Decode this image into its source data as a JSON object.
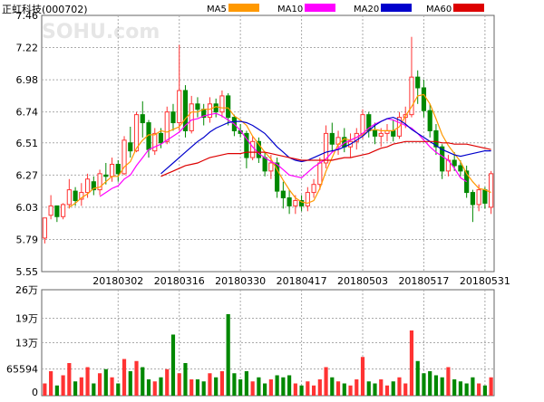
{
  "header": {
    "title": "正虹科技(000702)",
    "watermark": "SOHU.com",
    "legend": [
      {
        "label": "MA5",
        "color": "#ff9900"
      },
      {
        "label": "MA10",
        "color": "#ff00ff"
      },
      {
        "label": "MA20",
        "color": "#0000cc"
      },
      {
        "label": "MA60",
        "color": "#dd0000"
      }
    ]
  },
  "colors": {
    "up": "#ff3333",
    "down": "#008800",
    "grid": "#aaaaaa",
    "axis": "#000000"
  },
  "chart_data": [
    {
      "type": "candlestick",
      "name": "price",
      "ylim": [
        5.55,
        7.46
      ],
      "y_ticks": [
        "7.46",
        "7.22",
        "6.98",
        "6.74",
        "6.51",
        "6.27",
        "6.03",
        "5.79",
        "5.55"
      ],
      "x_tick_labels": [
        {
          "label": "20180302",
          "index": 12
        },
        {
          "label": "20180316",
          "index": 22
        },
        {
          "label": "20180330",
          "index": 32
        },
        {
          "label": "20180417",
          "index": 42
        },
        {
          "label": "20180503",
          "index": 52
        },
        {
          "label": "20180517",
          "index": 62
        },
        {
          "label": "20180531",
          "index": 72
        }
      ],
      "ohlc": [
        [
          5.8,
          5.95,
          5.76,
          5.95
        ],
        [
          5.97,
          6.12,
          5.94,
          6.04
        ],
        [
          6.04,
          6.04,
          5.92,
          5.96
        ],
        [
          5.96,
          6.06,
          5.94,
          6.05
        ],
        [
          6.05,
          6.24,
          6.02,
          6.16
        ],
        [
          6.15,
          6.18,
          6.04,
          6.08
        ],
        [
          6.09,
          6.21,
          6.04,
          6.14
        ],
        [
          6.14,
          6.28,
          6.1,
          6.24
        ],
        [
          6.22,
          6.26,
          6.12,
          6.16
        ],
        [
          6.16,
          6.31,
          6.12,
          6.28
        ],
        [
          6.27,
          6.36,
          6.2,
          6.26
        ],
        [
          6.26,
          6.4,
          6.22,
          6.35
        ],
        [
          6.35,
          6.38,
          6.22,
          6.28
        ],
        [
          6.28,
          6.56,
          6.27,
          6.53
        ],
        [
          6.51,
          6.63,
          6.4,
          6.45
        ],
        [
          6.45,
          6.74,
          6.44,
          6.72
        ],
        [
          6.72,
          6.82,
          6.55,
          6.66
        ],
        [
          6.66,
          6.68,
          6.4,
          6.46
        ],
        [
          6.45,
          6.62,
          6.42,
          6.58
        ],
        [
          6.58,
          6.62,
          6.47,
          6.51
        ],
        [
          6.52,
          6.78,
          6.5,
          6.74
        ],
        [
          6.74,
          6.8,
          6.6,
          6.66
        ],
        [
          6.66,
          7.24,
          6.6,
          6.9
        ],
        [
          6.9,
          6.94,
          6.55,
          6.6
        ],
        [
          6.6,
          6.86,
          6.58,
          6.8
        ],
        [
          6.8,
          6.85,
          6.7,
          6.76
        ],
        [
          6.76,
          6.8,
          6.64,
          6.7
        ],
        [
          6.7,
          6.85,
          6.66,
          6.8
        ],
        [
          6.8,
          6.84,
          6.7,
          6.74
        ],
        [
          6.74,
          6.9,
          6.7,
          6.86
        ],
        [
          6.86,
          6.88,
          6.64,
          6.7
        ],
        [
          6.7,
          6.72,
          6.56,
          6.6
        ],
        [
          6.6,
          6.65,
          6.55,
          6.58
        ],
        [
          6.58,
          6.6,
          6.32,
          6.4
        ],
        [
          6.4,
          6.56,
          6.38,
          6.52
        ],
        [
          6.52,
          6.55,
          6.36,
          6.4
        ],
        [
          6.4,
          6.44,
          6.26,
          6.3
        ],
        [
          6.3,
          6.42,
          6.24,
          6.36
        ],
        [
          6.36,
          6.4,
          6.1,
          6.15
        ],
        [
          6.15,
          6.22,
          6.02,
          6.1
        ],
        [
          6.1,
          6.16,
          5.98,
          6.04
        ],
        [
          6.04,
          6.12,
          5.98,
          6.08
        ],
        [
          6.08,
          6.12,
          6.0,
          6.04
        ],
        [
          6.04,
          6.18,
          6.0,
          6.14
        ],
        [
          6.14,
          6.24,
          6.1,
          6.2
        ],
        [
          6.2,
          6.4,
          6.16,
          6.36
        ],
        [
          6.36,
          6.64,
          6.32,
          6.58
        ],
        [
          6.58,
          6.66,
          6.44,
          6.5
        ],
        [
          6.5,
          6.6,
          6.42,
          6.55
        ],
        [
          6.55,
          6.62,
          6.44,
          6.48
        ],
        [
          6.48,
          6.58,
          6.4,
          6.52
        ],
        [
          6.52,
          6.62,
          6.46,
          6.58
        ],
        [
          6.58,
          6.76,
          6.54,
          6.72
        ],
        [
          6.72,
          6.74,
          6.55,
          6.6
        ],
        [
          6.6,
          6.66,
          6.5,
          6.56
        ],
        [
          6.56,
          6.62,
          6.48,
          6.58
        ],
        [
          6.58,
          6.65,
          6.52,
          6.6
        ],
        [
          6.6,
          6.68,
          6.52,
          6.56
        ],
        [
          6.56,
          6.74,
          6.54,
          6.7
        ],
        [
          6.7,
          6.78,
          6.62,
          6.72
        ],
        [
          6.72,
          7.3,
          6.7,
          7.0
        ],
        [
          7.0,
          7.05,
          6.8,
          6.92
        ],
        [
          6.92,
          6.98,
          6.7,
          6.75
        ],
        [
          6.75,
          6.8,
          6.55,
          6.6
        ],
        [
          6.6,
          6.65,
          6.42,
          6.48
        ],
        [
          6.48,
          6.5,
          6.24,
          6.3
        ],
        [
          6.3,
          6.42,
          6.26,
          6.38
        ],
        [
          6.38,
          6.44,
          6.3,
          6.34
        ],
        [
          6.34,
          6.38,
          6.26,
          6.3
        ],
        [
          6.3,
          6.34,
          6.1,
          6.14
        ],
        [
          6.14,
          6.16,
          5.92,
          6.05
        ],
        [
          6.05,
          6.2,
          6.0,
          6.16
        ],
        [
          6.16,
          6.18,
          6.02,
          6.06
        ],
        [
          6.03,
          6.3,
          5.98,
          6.28
        ]
      ],
      "series": [
        {
          "name": "MA5",
          "color": "#ff9900",
          "start": 4,
          "values": [
            6.03,
            6.06,
            6.1,
            6.13,
            6.17,
            6.18,
            6.22,
            6.26,
            6.26,
            6.33,
            6.37,
            6.47,
            6.53,
            6.57,
            6.57,
            6.6,
            6.59,
            6.61,
            6.63,
            6.69,
            6.74,
            6.74,
            6.76,
            6.76,
            6.78,
            6.77,
            6.77,
            6.71,
            6.68,
            6.64,
            6.56,
            6.5,
            6.44,
            6.39,
            6.31,
            6.23,
            6.16,
            6.1,
            6.07,
            6.06,
            6.08,
            6.17,
            6.3,
            6.4,
            6.5,
            6.54,
            6.53,
            6.55,
            6.57,
            6.6,
            6.61,
            6.6,
            6.6,
            6.6,
            6.63,
            6.71,
            6.78,
            6.86,
            6.87,
            6.8,
            6.69,
            6.57,
            6.49,
            6.43,
            6.37,
            6.28,
            6.22,
            6.17,
            6.16,
            6.14
          ]
        },
        {
          "name": "MA10",
          "color": "#ff00ff",
          "start": 9,
          "values": [
            6.11,
            6.14,
            6.17,
            6.19,
            6.24,
            6.27,
            6.34,
            6.4,
            6.46,
            6.48,
            6.5,
            6.53,
            6.56,
            6.59,
            6.64,
            6.68,
            6.69,
            6.71,
            6.72,
            6.73,
            6.71,
            6.68,
            6.65,
            6.6,
            6.54,
            6.48,
            6.43,
            6.4,
            6.37,
            6.35,
            6.31,
            6.27,
            6.26,
            6.25,
            6.29,
            6.33,
            6.36,
            6.39,
            6.44,
            6.47,
            6.51,
            6.53,
            6.55,
            6.58,
            6.62,
            6.65,
            6.67,
            6.69,
            6.68,
            6.66,
            6.64,
            6.62,
            6.58,
            6.53,
            6.48,
            6.44,
            6.41,
            6.38,
            6.32,
            6.25,
            6.22
          ]
        },
        {
          "name": "MA20",
          "color": "#0000cc",
          "start": 19,
          "values": [
            6.28,
            6.32,
            6.36,
            6.4,
            6.44,
            6.48,
            6.52,
            6.55,
            6.59,
            6.62,
            6.64,
            6.66,
            6.67,
            6.67,
            6.66,
            6.64,
            6.61,
            6.58,
            6.53,
            6.48,
            6.44,
            6.4,
            6.38,
            6.37,
            6.38,
            6.4,
            6.42,
            6.44,
            6.45,
            6.46,
            6.48,
            6.5,
            6.53,
            6.56,
            6.6,
            6.64,
            6.67,
            6.69,
            6.7,
            6.68,
            6.65,
            6.61,
            6.58,
            6.55,
            6.52,
            6.49,
            6.46,
            6.44,
            6.42,
            6.41,
            6.42,
            6.43,
            6.44,
            6.45,
            6.45
          ]
        },
        {
          "name": "MA60",
          "color": "#dd0000",
          "start": 19,
          "values": [
            6.26,
            6.28,
            6.3,
            6.32,
            6.34,
            6.35,
            6.36,
            6.38,
            6.4,
            6.41,
            6.42,
            6.43,
            6.43,
            6.43,
            6.44,
            6.44,
            6.44,
            6.44,
            6.43,
            6.42,
            6.41,
            6.4,
            6.39,
            6.38,
            6.38,
            6.38,
            6.38,
            6.38,
            6.38,
            6.39,
            6.4,
            6.4,
            6.41,
            6.42,
            6.43,
            6.45,
            6.47,
            6.48,
            6.5,
            6.51,
            6.52,
            6.52,
            6.52,
            6.52,
            6.52,
            6.52,
            6.51,
            6.51,
            6.5,
            6.5,
            6.5,
            6.49,
            6.48,
            6.47,
            6.46
          ]
        }
      ]
    },
    {
      "type": "bar",
      "name": "volume",
      "ylim": [
        0,
        260000
      ],
      "y_ticks": [
        "26万",
        "19万",
        "13万",
        "65594",
        "0"
      ],
      "values": [
        30000,
        60000,
        25000,
        50000,
        80000,
        35000,
        45000,
        70000,
        30000,
        55000,
        65000,
        45000,
        30000,
        90000,
        60000,
        85000,
        70000,
        40000,
        35000,
        45000,
        65000,
        150000,
        55000,
        80000,
        40000,
        40000,
        35000,
        55000,
        45000,
        60000,
        200000,
        55000,
        40000,
        60000,
        35000,
        45000,
        30000,
        40000,
        50000,
        45000,
        50000,
        30000,
        25000,
        35000,
        25000,
        40000,
        70000,
        45000,
        35000,
        30000,
        25000,
        40000,
        95000,
        35000,
        30000,
        40000,
        25000,
        35000,
        45000,
        30000,
        160000,
        85000,
        55000,
        60000,
        50000,
        45000,
        70000,
        40000,
        35000,
        30000,
        45000,
        30000,
        25000,
        45000
      ]
    }
  ]
}
